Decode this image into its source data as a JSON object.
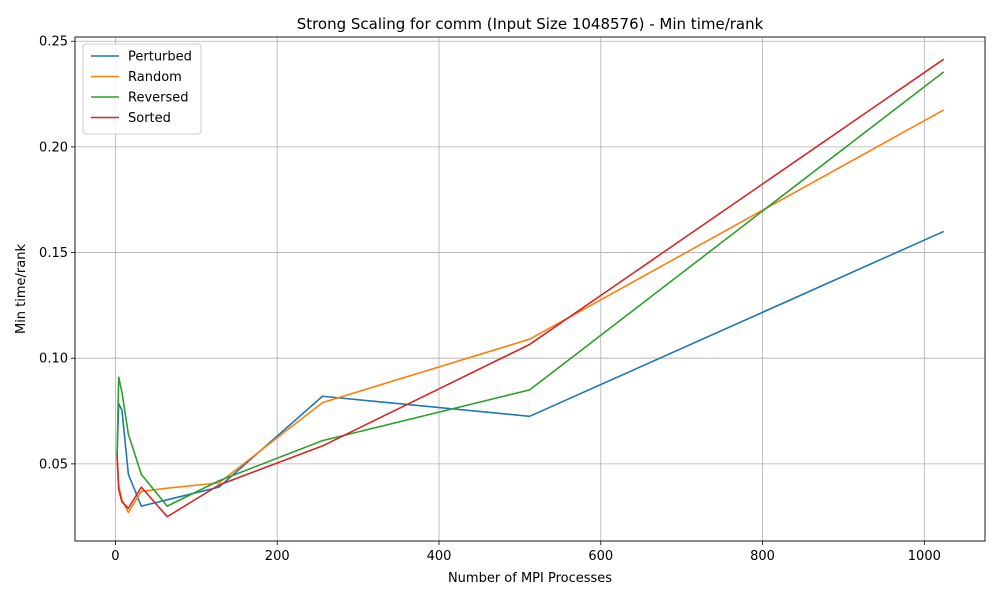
{
  "chart_data": {
    "type": "line",
    "title": "Strong Scaling for comm (Input Size 1048576) - Min time/rank",
    "xlabel": "Number of MPI Processes",
    "ylabel": "Min time/rank",
    "xlim": [
      -50,
      1075
    ],
    "ylim": [
      0.0135,
      0.252
    ],
    "xticks": [
      0,
      200,
      400,
      600,
      800,
      1000
    ],
    "yticks": [
      0.05,
      0.1,
      0.15,
      0.2,
      0.25
    ],
    "ytick_labels": [
      "0.05",
      "0.10",
      "0.15",
      "0.20",
      "0.25"
    ],
    "grid": true,
    "legend_position": "upper-left",
    "x": [
      2,
      4,
      8,
      16,
      32,
      64,
      128,
      256,
      512,
      1024
    ],
    "series": [
      {
        "name": "Perturbed",
        "color": "#1f77b4",
        "values": [
          0.054,
          0.0785,
          0.0755,
          0.045,
          0.03,
          0.033,
          0.039,
          0.082,
          0.0725,
          0.16
        ]
      },
      {
        "name": "Random",
        "color": "#ff7f0e",
        "values": [
          0.054,
          0.04,
          0.033,
          0.027,
          0.037,
          0.0385,
          0.041,
          0.079,
          0.109,
          0.2175
        ]
      },
      {
        "name": "Reversed",
        "color": "#2ca02c",
        "values": [
          0.054,
          0.091,
          0.084,
          0.064,
          0.045,
          0.03,
          0.042,
          0.061,
          0.085,
          0.2355
        ]
      },
      {
        "name": "Sorted",
        "color": "#d62728",
        "values": [
          0.054,
          0.038,
          0.032,
          0.029,
          0.039,
          0.025,
          0.04,
          0.0585,
          0.1065,
          0.2415
        ]
      }
    ]
  }
}
